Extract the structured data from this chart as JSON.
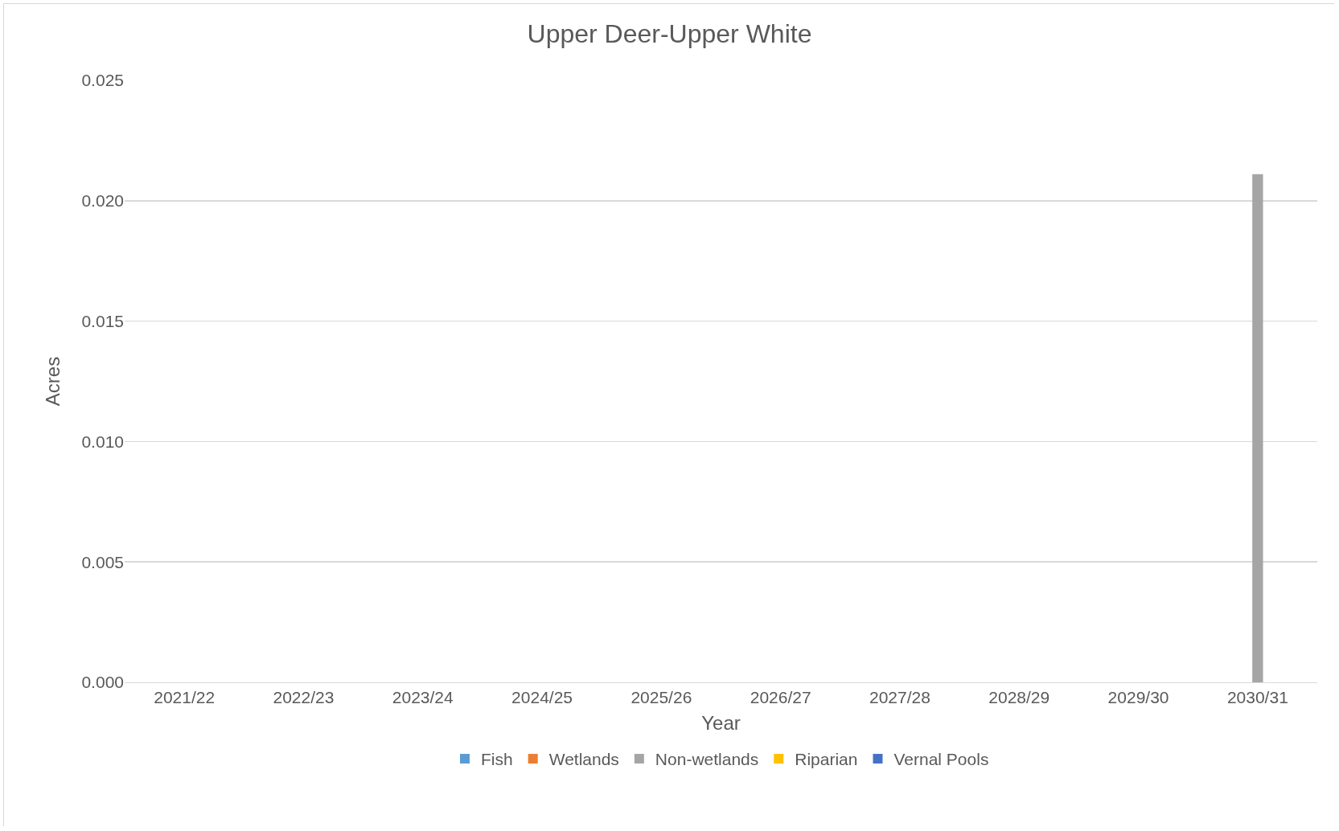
{
  "chart_data": {
    "type": "bar",
    "title": "Upper Deer-Upper White",
    "xlabel": "Year",
    "ylabel": "Acres",
    "categories": [
      "2021/22",
      "2022/23",
      "2023/24",
      "2024/25",
      "2025/26",
      "2026/27",
      "2027/28",
      "2028/29",
      "2029/30",
      "2030/31"
    ],
    "series": [
      {
        "name": "Fish",
        "color": "#5b9bd5",
        "values": [
          0,
          0,
          0,
          0,
          0,
          0,
          0,
          0,
          0,
          0
        ]
      },
      {
        "name": "Wetlands",
        "color": "#ed7d31",
        "values": [
          0,
          0,
          0,
          0,
          0,
          0,
          0,
          0,
          0,
          0
        ]
      },
      {
        "name": "Non-wetlands",
        "color": "#a5a5a5",
        "values": [
          0,
          0,
          0,
          0,
          0,
          0,
          0,
          0,
          0,
          0.0211
        ]
      },
      {
        "name": "Riparian",
        "color": "#ffc000",
        "values": [
          0,
          0,
          0,
          0,
          0,
          0,
          0,
          0,
          0,
          0
        ]
      },
      {
        "name": "Vernal Pools",
        "color": "#4472c4",
        "values": [
          0,
          0,
          0,
          0,
          0,
          0,
          0,
          0,
          0,
          0
        ]
      }
    ],
    "ylim": [
      0,
      0.025
    ],
    "yticks": [
      {
        "value": 0,
        "label": "0.000"
      },
      {
        "value": 0.005,
        "label": "0.005"
      },
      {
        "value": 0.01,
        "label": "0.010"
      },
      {
        "value": 0.015,
        "label": "0.015"
      },
      {
        "value": 0.02,
        "label": "0.020"
      },
      {
        "value": 0.025,
        "label": "0.025"
      }
    ],
    "grid": "y",
    "legend": "bottom"
  }
}
